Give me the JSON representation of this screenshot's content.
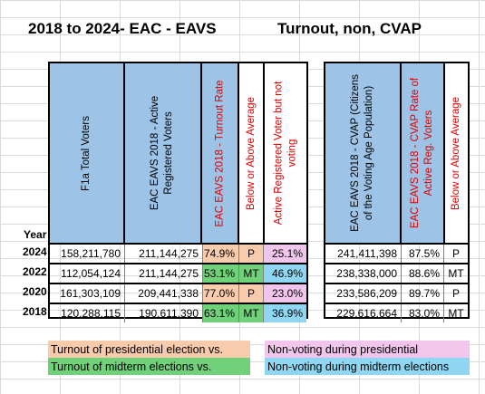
{
  "titles": {
    "left": "2018 to 2024- EAC - EAVS",
    "right": "Turnout, non, CVAP"
  },
  "year_label": "Year",
  "headers": {
    "f1a": "F1a Total Voters",
    "active_line1": "EAC EAVS 2018 - Active",
    "active_line2": "Registered Voters",
    "turnout": "EAC EAVS 2018 - Turnout Rate",
    "above_below": "Below or Above Average",
    "nonvoting_line1": "Active Registered Voter but not",
    "nonvoting_line2": "voting",
    "cvap_line1": "EAC EAVS 2018 - CVAP (Citizens",
    "cvap_line2": "of the Voting Age Population)",
    "cvap_rate_line1": "EAC EAVS 2018 - CVAP Rate of",
    "cvap_rate_line2": "Active Reg. Voters",
    "above_below2": "Below or Above Average"
  },
  "rows": [
    {
      "year": "2024",
      "f1a": "158,211,780",
      "active": "211,144,275",
      "turnout": "74.9%",
      "flag": "P",
      "nonvoting": "25.1%",
      "cvap": "241,411,398",
      "cvap_rate": "87.5%",
      "flag2": "P"
    },
    {
      "year": "2022",
      "f1a": "112,054,124",
      "active": "211,144,275",
      "turnout": "53.1%",
      "flag": "MT",
      "nonvoting": "46.9%",
      "cvap": "238,338,000",
      "cvap_rate": "88.6%",
      "flag2": "MT"
    },
    {
      "year": "2020",
      "f1a": "161,303,109",
      "active": "209,441,338",
      "turnout": "77.0%",
      "flag": "P",
      "nonvoting": "23.0%",
      "cvap": "233,586,209",
      "cvap_rate": "89.7%",
      "flag2": "P"
    },
    {
      "year": "2018",
      "f1a": "120,288,115",
      "active": "190,611,390",
      "turnout": "63.1%",
      "flag": "MT",
      "nonvoting": "36.9%",
      "cvap": "229,616,664",
      "cvap_rate": "83.0%",
      "flag2": "MT"
    }
  ],
  "legend": {
    "presidential_turnout": "Turnout of presidential election vs.",
    "midterm_turnout": "Turnout of midterm elections vs.",
    "presidential_nonvoting": "Non-voting during presidential",
    "midterm_nonvoting": "Non-voting during midterm elections"
  },
  "colors": {
    "header_blue": "#9dc3e6",
    "presidential_orange": "#f8cbad",
    "midterm_green": "#70d17a",
    "presidential_pink": "#f2c6ec",
    "midterm_blue": "#8ed6f2"
  }
}
